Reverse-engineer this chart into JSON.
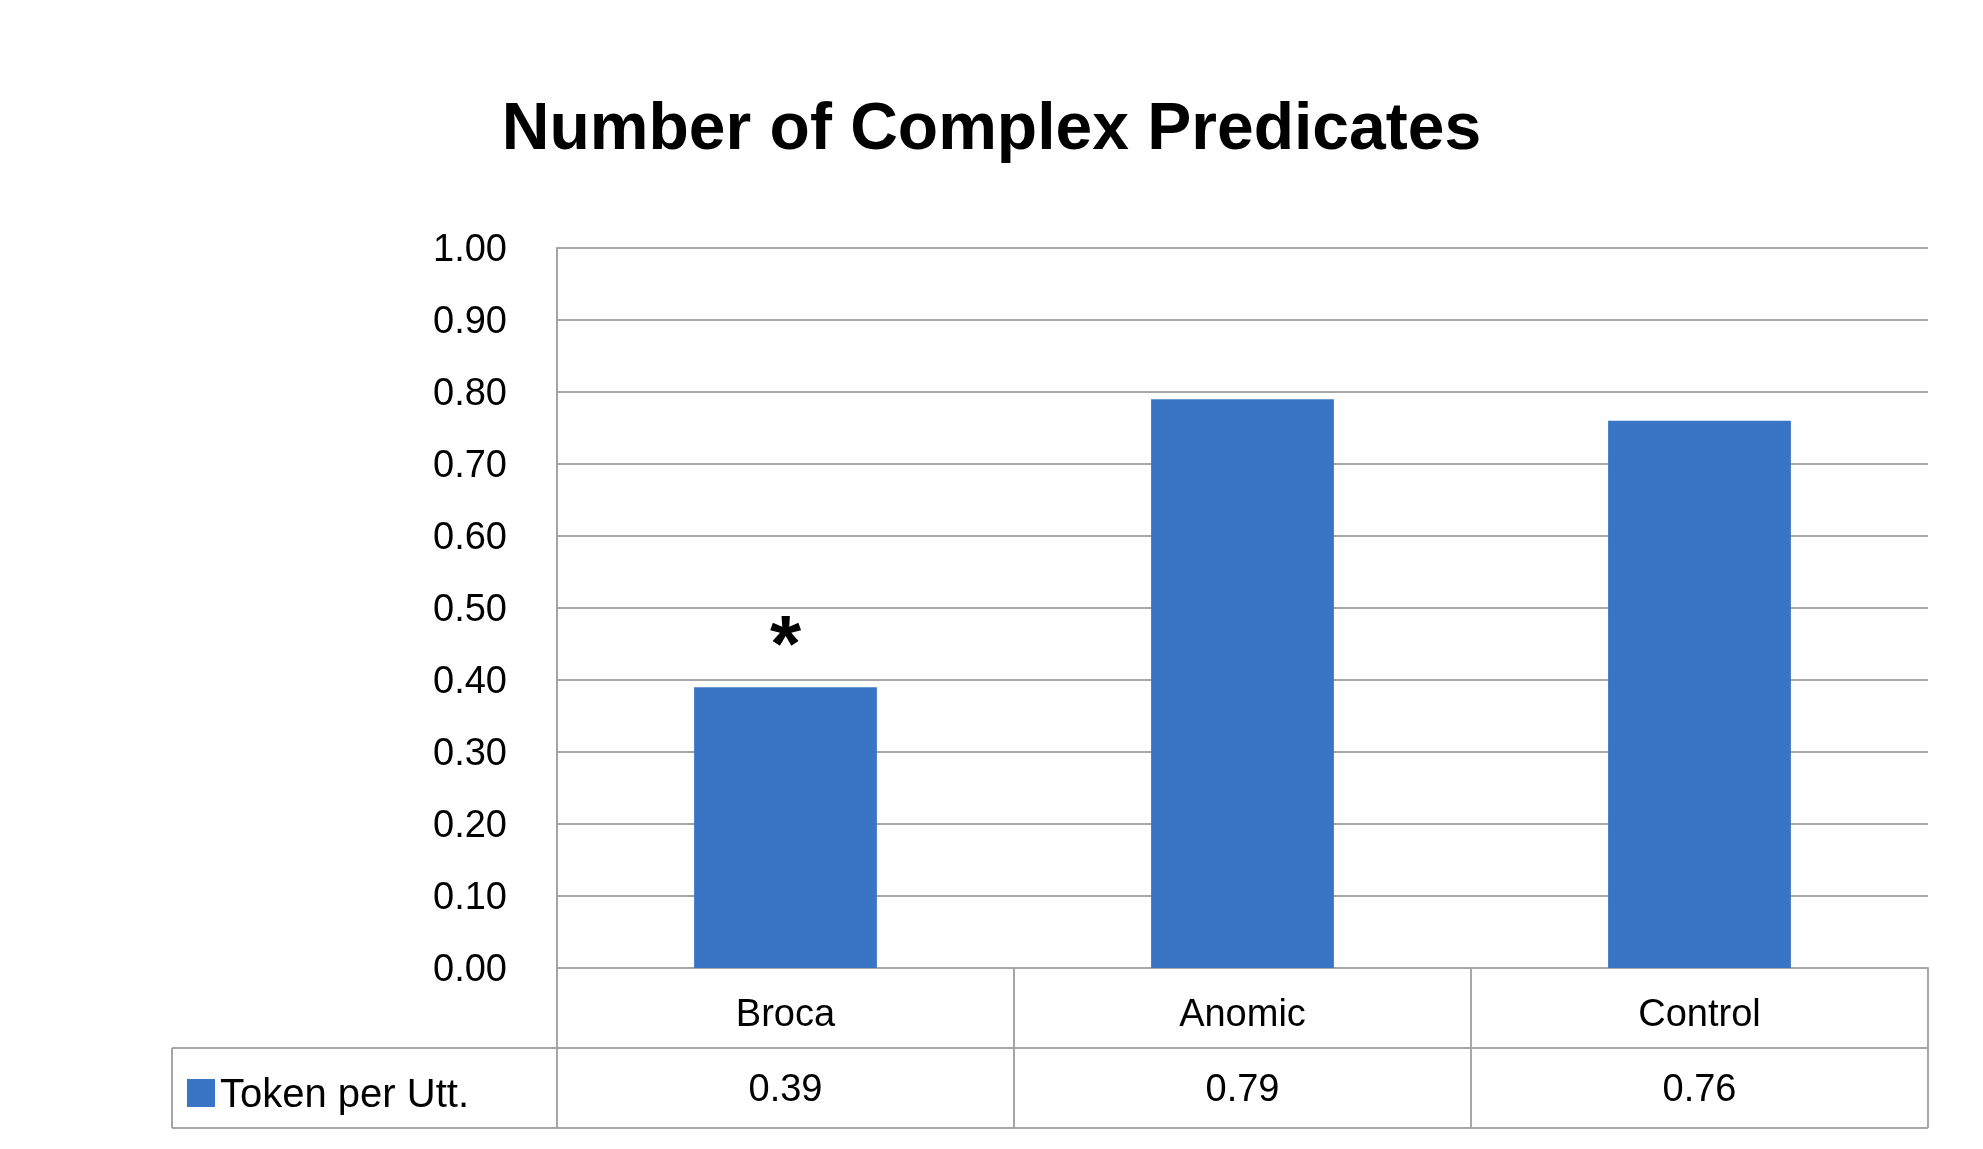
{
  "chart_data": {
    "type": "bar",
    "title": "Number of Complex Predicates",
    "categories": [
      "Broca",
      "Anomic",
      "Control"
    ],
    "series": [
      {
        "name": "Token per Utt.",
        "color": "#3a74c4",
        "values": [
          0.39,
          0.79,
          0.76
        ]
      }
    ],
    "ylim": [
      0,
      1
    ],
    "yticks": [
      {
        "value": 0,
        "label": "0.00"
      },
      {
        "value": 0.1,
        "label": "0.10"
      },
      {
        "value": 0.2,
        "label": "0.20"
      },
      {
        "value": 0.3,
        "label": "0.30"
      },
      {
        "value": 0.4,
        "label": "0.40"
      },
      {
        "value": 0.5,
        "label": "0.50"
      },
      {
        "value": 0.6,
        "label": "0.60"
      },
      {
        "value": 0.7,
        "label": "0.70"
      },
      {
        "value": 0.8,
        "label": "0.80"
      },
      {
        "value": 0.9,
        "label": "0.90"
      },
      {
        "value": 1,
        "label": "1.00"
      }
    ],
    "grid": "y",
    "legend": "bottom",
    "data_labels": true,
    "annotations": [
      {
        "text": "*",
        "x": "Broca",
        "y": 0.39
      }
    ]
  }
}
